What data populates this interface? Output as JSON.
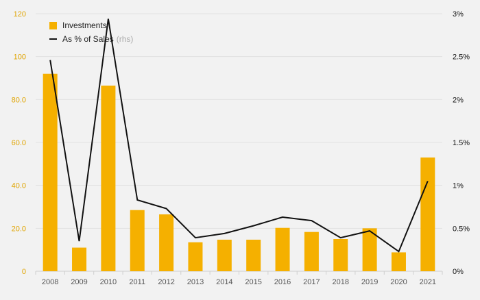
{
  "colors": {
    "background": "#f2f2f2",
    "bar": "#f5b000",
    "line": "#111111",
    "grid": "#e1e1e1",
    "left_tick": "#e0a400",
    "right_tick": "#111111",
    "x_tick": "#555555"
  },
  "legend": {
    "position": "top-left",
    "items": [
      {
        "label": "Investments",
        "marker": "bar"
      },
      {
        "label": "As % of Sales",
        "note": "(rhs)",
        "marker": "line"
      }
    ]
  },
  "chart_data": {
    "type": "bar",
    "title": "",
    "xlabel": "",
    "ylabel": "",
    "grid": true,
    "categories": [
      "2008",
      "2009",
      "2010",
      "2011",
      "2012",
      "2013",
      "2014",
      "2015",
      "2016",
      "2017",
      "2018",
      "2019",
      "2020",
      "2021"
    ],
    "series": [
      {
        "name": "Investments",
        "type": "bar",
        "axis": "left",
        "values": [
          92,
          11,
          86.5,
          28.5,
          26.5,
          13.5,
          14.7,
          14.7,
          20.2,
          18.3,
          15,
          20,
          8.8,
          53
        ]
      },
      {
        "name": "As % of Sales",
        "type": "line",
        "axis": "right",
        "values": [
          2.46,
          0.35,
          2.94,
          0.83,
          0.73,
          0.39,
          0.44,
          0.53,
          0.63,
          0.59,
          0.39,
          0.47,
          0.23,
          1.05
        ]
      }
    ],
    "ylim": [
      0,
      120
    ],
    "yticks": [
      "0",
      "20.0",
      "40.0",
      "60.0",
      "80.0",
      "100",
      "120"
    ],
    "y2lim": [
      0,
      3
    ],
    "y2ticks": [
      "0%",
      "0.5%",
      "1%",
      "1.5%",
      "2%",
      "2.5%",
      "3%"
    ]
  }
}
